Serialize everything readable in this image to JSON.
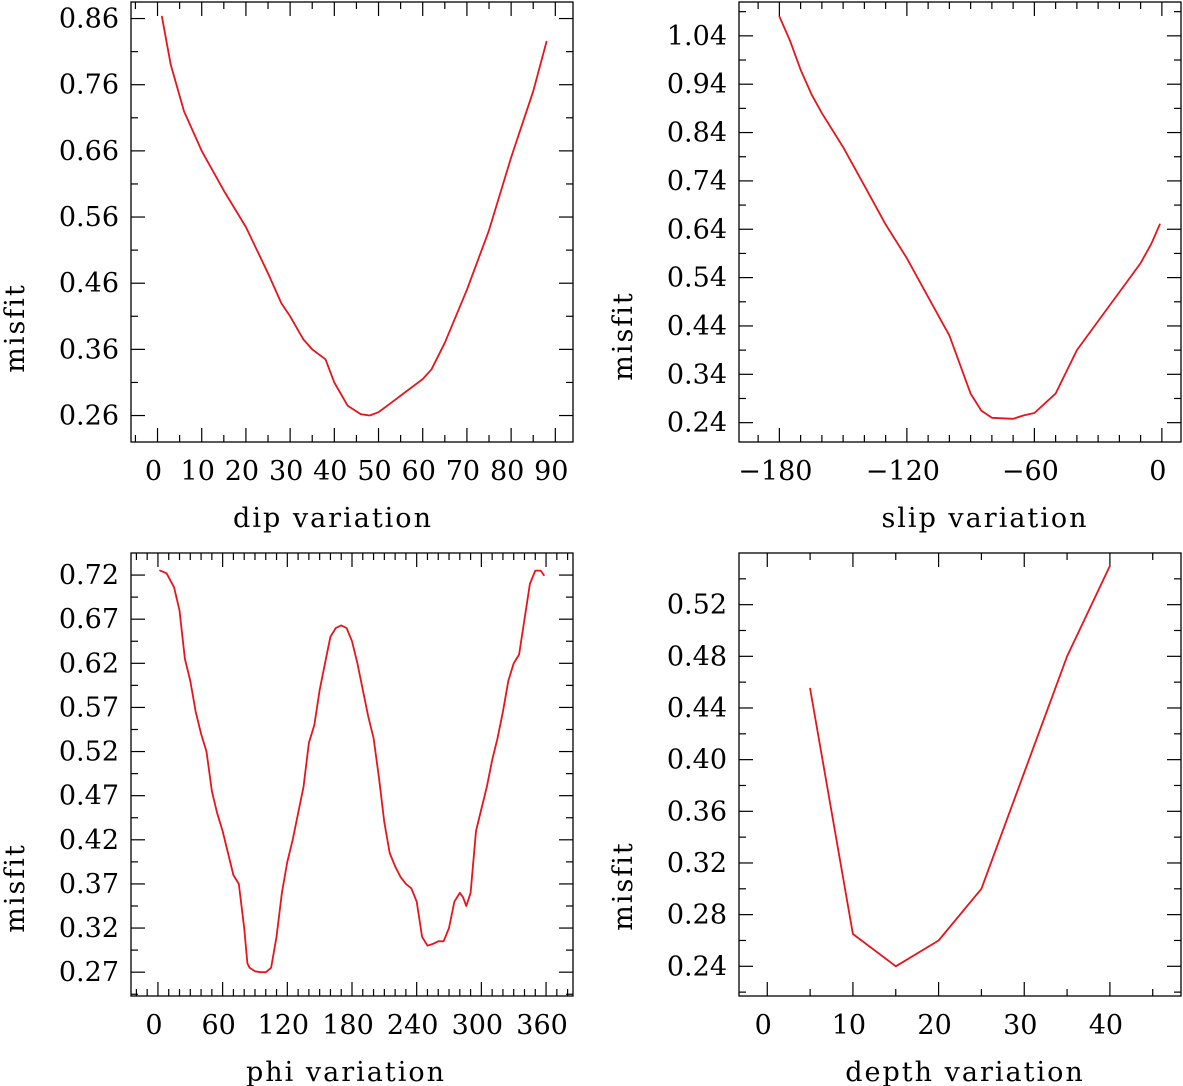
{
  "colors": {
    "line": "#e8141c",
    "axis": "#000000"
  },
  "chart_data": [
    {
      "type": "line",
      "title": "",
      "xlabel": "dip    variation",
      "ylabel": "misfit",
      "xlim": [
        -6,
        94
      ],
      "ylim": [
        0.22,
        0.885
      ],
      "x_ticks": [
        0,
        10,
        20,
        30,
        40,
        50,
        60,
        70,
        80,
        90
      ],
      "x_tick_labels": [
        "0",
        "10",
        "20",
        "30",
        "40",
        "50",
        "60",
        "70",
        "80",
        "90"
      ],
      "y_ticks": [
        0.26,
        0.36,
        0.46,
        0.56,
        0.66,
        0.76,
        0.86
      ],
      "y_tick_labels": [
        "0.26",
        "0.36",
        "0.46",
        "0.56",
        "0.66",
        "0.76",
        "0.86"
      ],
      "series": [
        {
          "name": "dip",
          "x": [
            1,
            3,
            6,
            10,
            15,
            20,
            25,
            28,
            30,
            33,
            35,
            38,
            40,
            43,
            46,
            48,
            50,
            53,
            56,
            60,
            62,
            65,
            70,
            75,
            80,
            85,
            88
          ],
          "y": [
            0.863,
            0.79,
            0.72,
            0.66,
            0.6,
            0.545,
            0.475,
            0.43,
            0.41,
            0.375,
            0.36,
            0.345,
            0.31,
            0.275,
            0.262,
            0.26,
            0.265,
            0.28,
            0.295,
            0.315,
            0.33,
            0.37,
            0.45,
            0.54,
            0.65,
            0.75,
            0.825
          ]
        }
      ]
    },
    {
      "type": "line",
      "title": "",
      "xlabel": "slip    variation",
      "ylabel": "misfit",
      "xlim": [
        -199,
        9
      ],
      "ylim": [
        0.2,
        1.11
      ],
      "x_ticks": [
        -180,
        -120,
        -60,
        0
      ],
      "x_tick_labels": [
        "−180",
        "−120",
        "−60",
        "0"
      ],
      "y_ticks": [
        0.24,
        0.34,
        0.44,
        0.54,
        0.64,
        0.74,
        0.84,
        0.94,
        1.04
      ],
      "y_tick_labels": [
        "0.24",
        "0.34",
        "0.44",
        "0.54",
        "0.64",
        "0.74",
        "0.84",
        "0.94",
        "1.04"
      ],
      "series": [
        {
          "name": "slip",
          "x": [
            -180,
            -175,
            -170,
            -165,
            -160,
            -150,
            -140,
            -130,
            -120,
            -110,
            -100,
            -95,
            -90,
            -85,
            -80,
            -70,
            -65,
            -60,
            -50,
            -40,
            -30,
            -20,
            -10,
            -5,
            -1
          ],
          "y": [
            1.08,
            1.03,
            0.97,
            0.92,
            0.88,
            0.81,
            0.73,
            0.65,
            0.58,
            0.5,
            0.42,
            0.36,
            0.3,
            0.265,
            0.25,
            0.248,
            0.255,
            0.26,
            0.3,
            0.39,
            0.45,
            0.51,
            0.57,
            0.61,
            0.65
          ]
        }
      ]
    },
    {
      "type": "line",
      "title": "",
      "xlabel": "phi    variation",
      "ylabel": "misfit",
      "xlim": [
        -25,
        385
      ],
      "ylim": [
        0.243,
        0.745
      ],
      "x_ticks": [
        0,
        60,
        120,
        180,
        240,
        300,
        360
      ],
      "x_tick_labels": [
        "0",
        "60",
        "120",
        "180",
        "240",
        "300",
        "360"
      ],
      "y_ticks": [
        0.27,
        0.32,
        0.37,
        0.42,
        0.47,
        0.52,
        0.57,
        0.62,
        0.67,
        0.72
      ],
      "y_tick_labels": [
        "0.27",
        "0.32",
        "0.37",
        "0.42",
        "0.47",
        "0.52",
        "0.57",
        "0.62",
        "0.67",
        "0.72"
      ],
      "series": [
        {
          "name": "phi",
          "x": [
            2,
            8,
            15,
            20,
            25,
            30,
            35,
            40,
            45,
            50,
            55,
            60,
            65,
            70,
            75,
            80,
            83,
            85,
            90,
            95,
            100,
            105,
            110,
            115,
            120,
            125,
            130,
            135,
            140,
            145,
            150,
            155,
            160,
            165,
            170,
            175,
            180,
            185,
            190,
            195,
            200,
            205,
            210,
            215,
            220,
            225,
            230,
            235,
            240,
            245,
            250,
            255,
            260,
            265,
            270,
            275,
            280,
            283,
            286,
            290,
            295,
            300,
            305,
            310,
            315,
            320,
            325,
            330,
            335,
            340,
            345,
            350,
            355,
            358
          ],
          "y": [
            0.725,
            0.722,
            0.706,
            0.68,
            0.625,
            0.6,
            0.565,
            0.54,
            0.52,
            0.475,
            0.45,
            0.43,
            0.405,
            0.38,
            0.37,
            0.32,
            0.28,
            0.275,
            0.271,
            0.27,
            0.27,
            0.275,
            0.31,
            0.36,
            0.395,
            0.42,
            0.45,
            0.48,
            0.53,
            0.55,
            0.59,
            0.62,
            0.65,
            0.66,
            0.663,
            0.66,
            0.645,
            0.62,
            0.59,
            0.56,
            0.535,
            0.49,
            0.44,
            0.405,
            0.39,
            0.378,
            0.37,
            0.365,
            0.35,
            0.31,
            0.3,
            0.302,
            0.305,
            0.305,
            0.32,
            0.35,
            0.36,
            0.355,
            0.345,
            0.36,
            0.43,
            0.455,
            0.48,
            0.51,
            0.535,
            0.565,
            0.6,
            0.62,
            0.63,
            0.67,
            0.71,
            0.725,
            0.725,
            0.72
          ]
        }
      ]
    },
    {
      "type": "line",
      "title": "",
      "xlabel": "depth    variation",
      "ylabel": "misfit",
      "xlim": [
        -3.3,
        48.3
      ],
      "ylim": [
        0.217,
        0.56
      ],
      "x_ticks": [
        0,
        10,
        20,
        30,
        40
      ],
      "x_tick_labels": [
        "0",
        "10",
        "20",
        "30",
        "40"
      ],
      "y_ticks": [
        0.24,
        0.28,
        0.32,
        0.36,
        0.4,
        0.44,
        0.48,
        0.52
      ],
      "y_tick_labels": [
        "0.24",
        "0.28",
        "0.32",
        "0.36",
        "0.40",
        "0.44",
        "0.48",
        "0.52"
      ],
      "series": [
        {
          "name": "depth",
          "x": [
            5,
            10,
            15,
            20,
            25,
            30,
            35,
            40
          ],
          "y": [
            0.455,
            0.265,
            0.24,
            0.26,
            0.3,
            0.39,
            0.48,
            0.55
          ]
        }
      ]
    }
  ]
}
